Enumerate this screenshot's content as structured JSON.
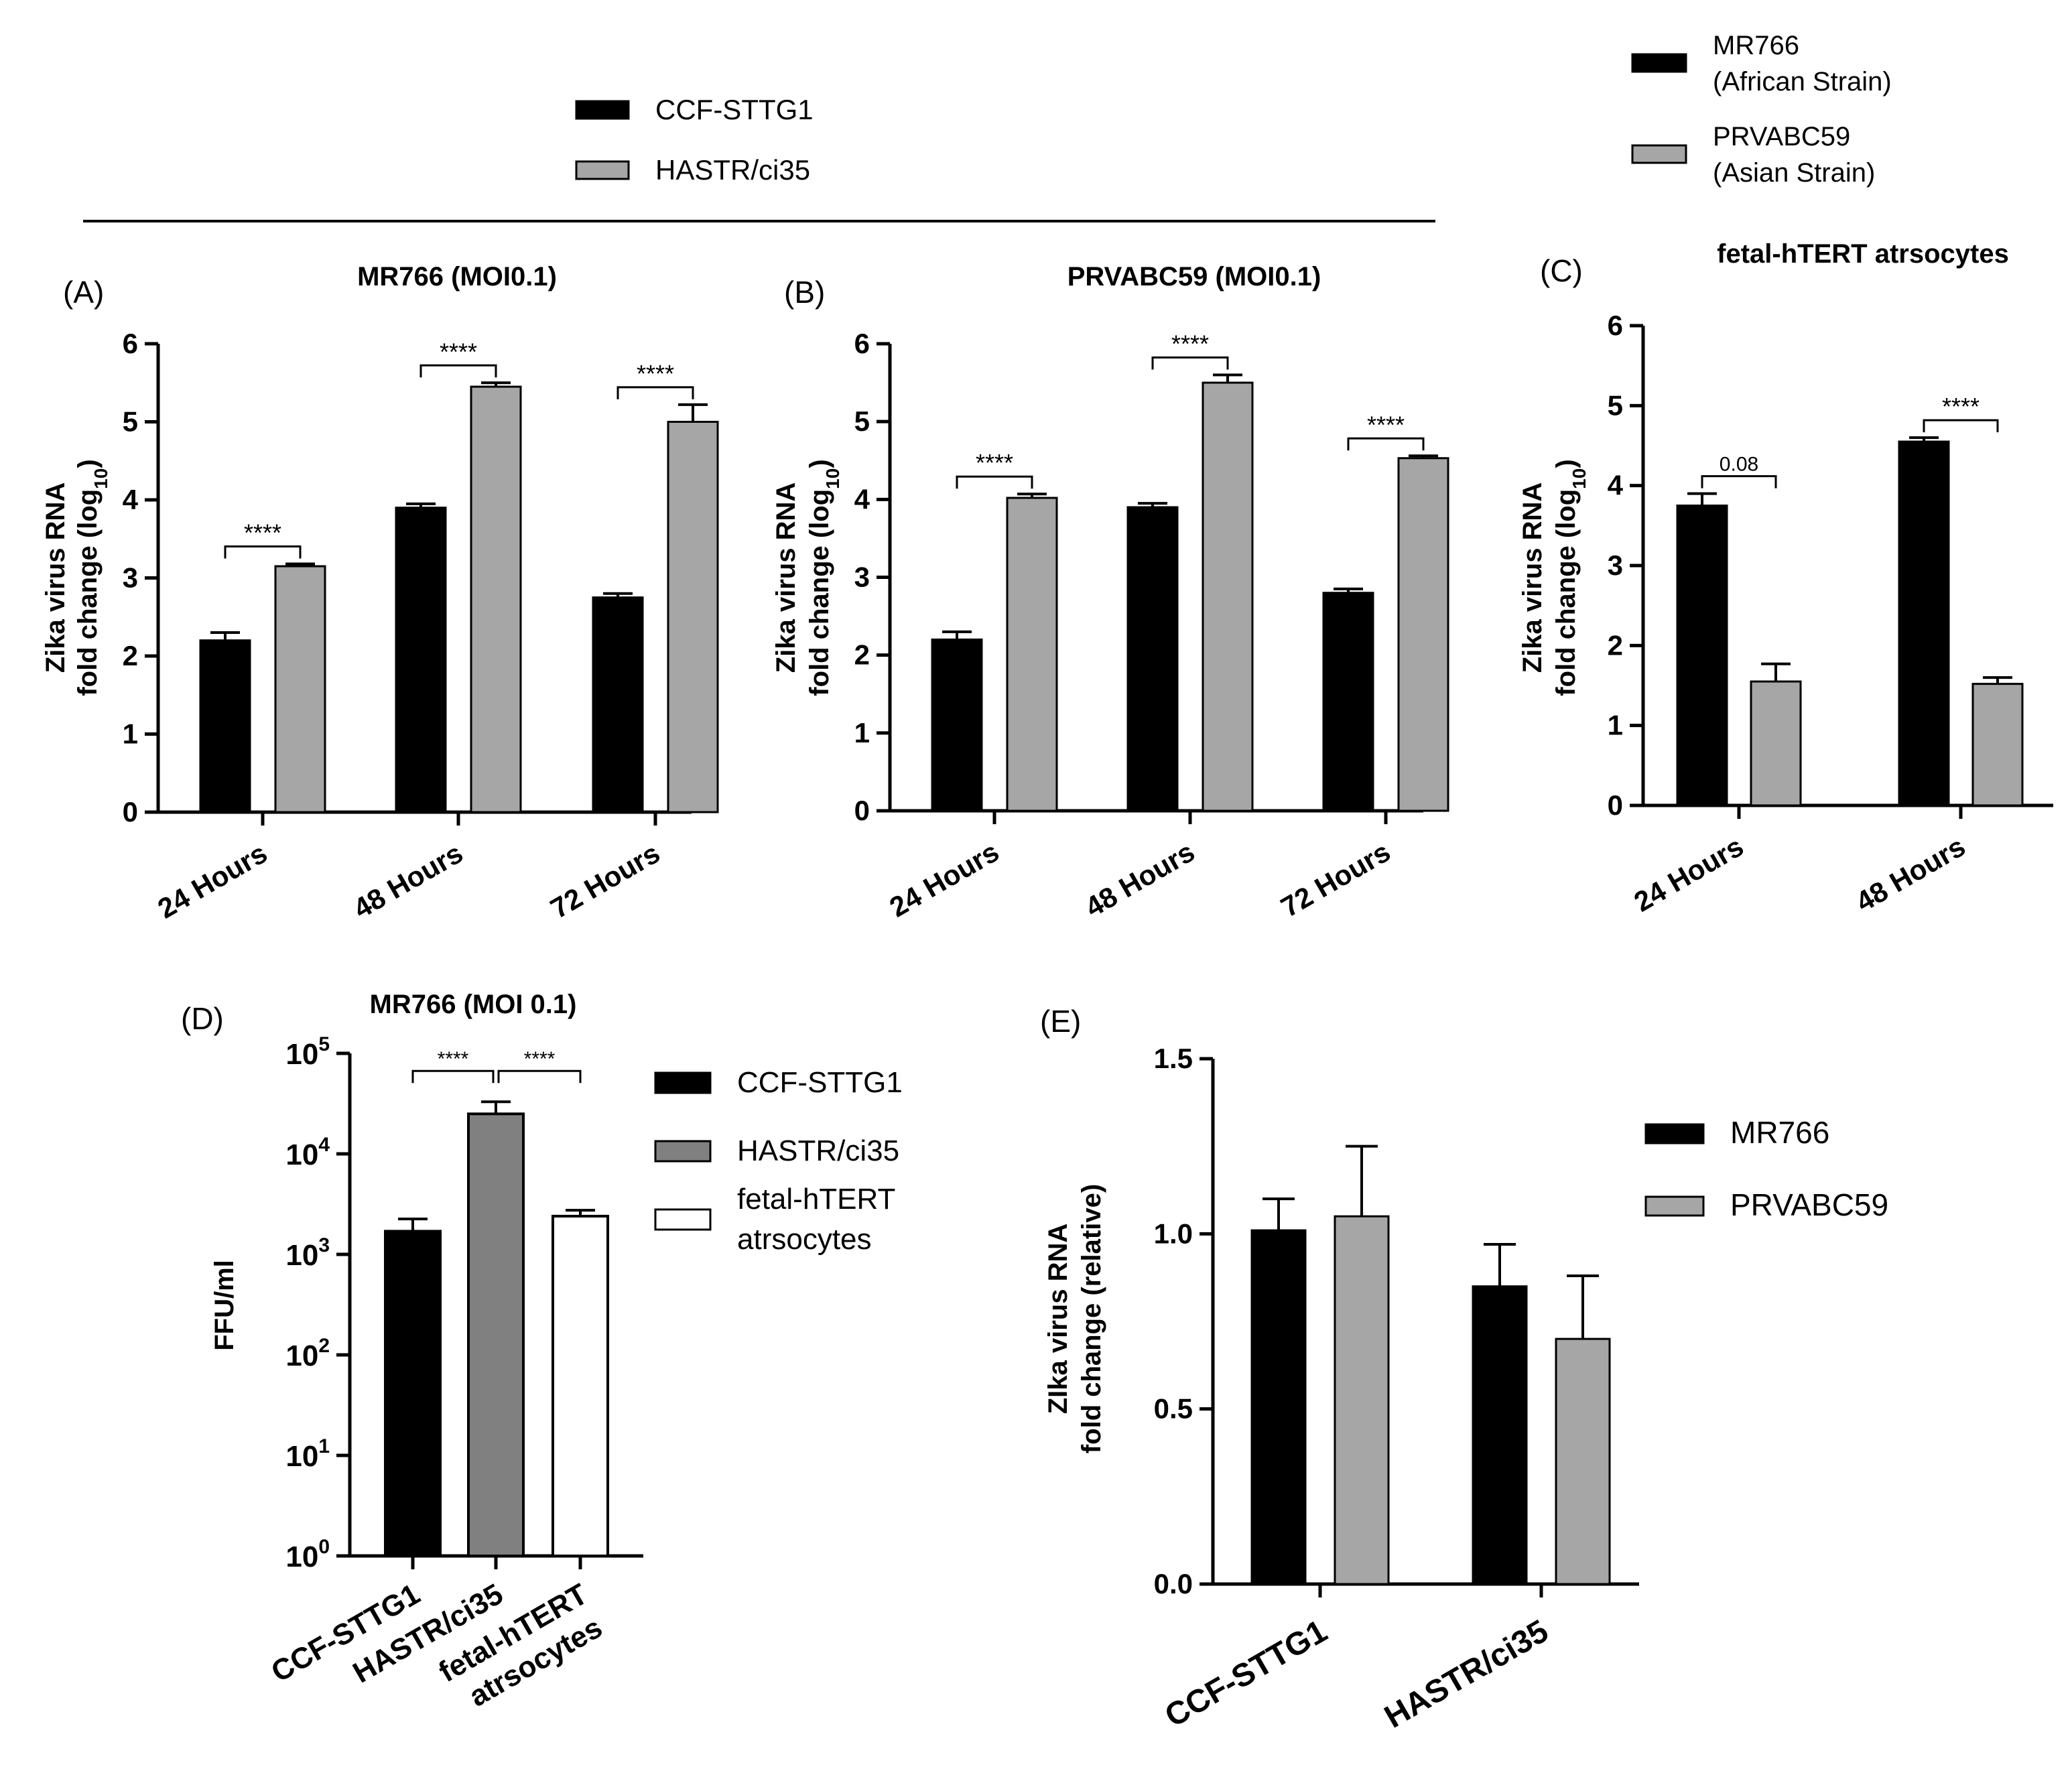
{
  "colors": {
    "black": "#000000",
    "gray": "#a6a6a6",
    "darkgray": "#808080",
    "white": "#ffffff"
  },
  "top_legend_cell": {
    "items": [
      {
        "label": "CCF-STTG1",
        "color": "#000000"
      },
      {
        "label": "HASTR/ci35",
        "color": "#a6a6a6"
      }
    ]
  },
  "top_legend_strain": {
    "items": [
      {
        "lines": [
          "MR766",
          "(African Strain)"
        ],
        "color": "#000000"
      },
      {
        "lines": [
          "PRVABC59",
          "(Asian Strain)"
        ],
        "color": "#a6a6a6"
      }
    ]
  },
  "legend_D": {
    "items": [
      {
        "lines": [
          "CCF-STTG1"
        ],
        "color": "#000000"
      },
      {
        "lines": [
          "HASTR/ci35"
        ],
        "color": "#808080"
      },
      {
        "lines": [
          "fetal-hTERT",
          "atrsocytes"
        ],
        "color": "#ffffff"
      }
    ]
  },
  "legend_E": {
    "items": [
      {
        "label": "MR766",
        "color": "#000000"
      },
      {
        "label": "PRVABC59",
        "color": "#a6a6a6"
      }
    ]
  },
  "chart_data": [
    {
      "id": "A",
      "panel_label": "(A)",
      "type": "bar",
      "title": "MR766 (MOI0.1)",
      "ylabel_lines": [
        "Zika virus RNA",
        "fold change (log10)"
      ],
      "categories": [
        "24 Hours",
        "48 Hours",
        "72 Hours"
      ],
      "ylim": [
        0,
        6
      ],
      "yticks": [
        "0",
        "1",
        "2",
        "3",
        "4",
        "5",
        "6"
      ],
      "series": [
        {
          "name": "CCF-STTG1",
          "color": "#000000",
          "values": [
            2.2,
            3.9,
            2.75
          ],
          "errors": [
            0.1,
            0.05,
            0.05
          ]
        },
        {
          "name": "HASTR/ci35",
          "color": "#a6a6a6",
          "values": [
            3.15,
            5.45,
            5.0
          ],
          "errors": [
            0.03,
            0.05,
            0.22
          ]
        }
      ],
      "significance": [
        "****",
        "****",
        "****"
      ]
    },
    {
      "id": "B",
      "panel_label": "(B)",
      "type": "bar",
      "title": "PRVABC59 (MOI0.1)",
      "ylabel_lines": [
        "Zika virus RNA",
        "fold change (log10)"
      ],
      "categories": [
        "24 Hours",
        "48 Hours",
        "72 Hours"
      ],
      "ylim": [
        0,
        6
      ],
      "yticks": [
        "0",
        "1",
        "2",
        "3",
        "4",
        "5",
        "6"
      ],
      "series": [
        {
          "name": "CCF-STTG1",
          "color": "#000000",
          "values": [
            2.2,
            3.9,
            2.8
          ],
          "errors": [
            0.1,
            0.05,
            0.05
          ]
        },
        {
          "name": "HASTR/ci35",
          "color": "#a6a6a6",
          "values": [
            4.02,
            5.5,
            4.53
          ],
          "errors": [
            0.05,
            0.1,
            0.03
          ]
        }
      ],
      "significance": [
        "****",
        "****",
        "****"
      ]
    },
    {
      "id": "C",
      "panel_label": "(C)",
      "type": "bar",
      "title": "fetal-hTERT atrsocytes",
      "ylabel_lines": [
        "Zika virus RNA",
        "fold change (log10)"
      ],
      "categories": [
        "24 Hours",
        "48 Hours"
      ],
      "ylim": [
        0,
        6
      ],
      "yticks": [
        "0",
        "1",
        "2",
        "3",
        "4",
        "5",
        "6"
      ],
      "series": [
        {
          "name": "MR766 (African Strain)",
          "color": "#000000",
          "values": [
            3.75,
            4.55
          ],
          "errors": [
            0.15,
            0.05
          ]
        },
        {
          "name": "PRVABC59 (Asian Strain)",
          "color": "#a6a6a6",
          "values": [
            1.55,
            1.52
          ],
          "errors": [
            0.22,
            0.08
          ]
        }
      ],
      "significance": [
        "0.08",
        "****"
      ]
    },
    {
      "id": "D",
      "panel_label": "(D)",
      "type": "bar",
      "title": "MR766 (MOI 0.1)",
      "ylabel_lines": [
        "FFU/ml"
      ],
      "yscale": "log",
      "categories": [
        "CCF-STTG1",
        "HASTR/ci35",
        "fetal-hTERT atrsocytes"
      ],
      "xtick_lines": [
        [
          "CCF-STTG1"
        ],
        [
          "HASTR/ci35"
        ],
        [
          "fetal-hTERT",
          "atrsocytes"
        ]
      ],
      "ylim": [
        1,
        100000
      ],
      "yticks": [
        {
          "base": "10",
          "exp": "0"
        },
        {
          "base": "10",
          "exp": "1"
        },
        {
          "base": "10",
          "exp": "2"
        },
        {
          "base": "10",
          "exp": "3"
        },
        {
          "base": "10",
          "exp": "4"
        },
        {
          "base": "10",
          "exp": "5"
        }
      ],
      "values": [
        1700,
        25000,
        2400
      ],
      "errors_upper": [
        2250,
        33000,
        2750
      ],
      "colors": [
        "#000000",
        "#808080",
        "#ffffff"
      ],
      "significance": [
        "****",
        "****"
      ]
    },
    {
      "id": "E",
      "panel_label": "(E)",
      "type": "bar",
      "title": "",
      "ylabel_lines": [
        "ZIka virus RNA",
        "fold change (relative)"
      ],
      "categories": [
        "CCF-STTG1",
        "HASTR/ci35"
      ],
      "ylim": [
        0,
        1.5
      ],
      "yticks": [
        "0.0",
        "0.5",
        "1.0",
        "1.5"
      ],
      "series": [
        {
          "name": "MR766",
          "color": "#000000",
          "values": [
            1.01,
            0.85
          ],
          "errors": [
            0.09,
            0.12
          ]
        },
        {
          "name": "PRVABC59",
          "color": "#a6a6a6",
          "values": [
            1.05,
            0.7
          ],
          "errors": [
            0.2,
            0.18
          ]
        }
      ]
    }
  ]
}
